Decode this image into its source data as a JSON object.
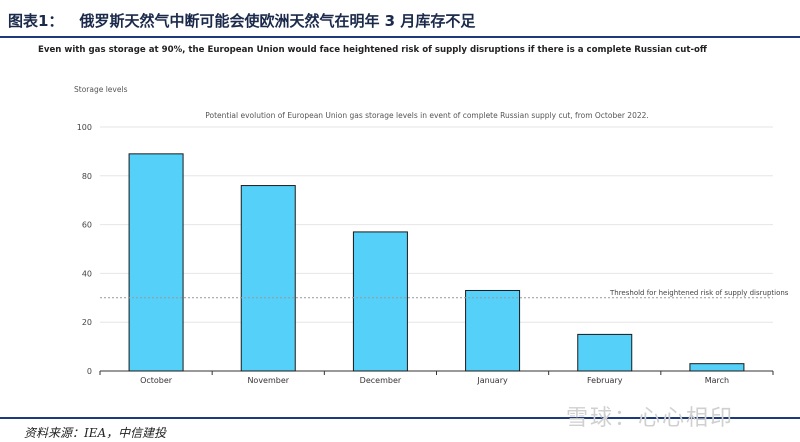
{
  "figure": {
    "label": "图表1：",
    "title": "俄罗斯天然气中断可能会使欧洲天然气在明年 3 月库存不足"
  },
  "subtitle": "Even with gas storage at 90%, the European Union would face heightened risk of supply disruptions if there is a complete Russian cut-off",
  "source": "资料来源：IEA，中信建投",
  "watermark": "雪球：心心相印",
  "colors": {
    "bar": "#55d0f8",
    "bar_stroke": "#1a1a1a",
    "threshold": "#999999",
    "title_rule": "#1f3a7a"
  },
  "chart_data": {
    "type": "bar",
    "title": "Potential evolution of European Union gas storage levels in event of complete Russian supply cut, from October 2022.",
    "ylabel": "Storage levels",
    "xlabel": "",
    "categories": [
      "October",
      "November",
      "December",
      "January",
      "February",
      "March"
    ],
    "values": [
      89,
      76,
      57,
      33,
      15,
      3
    ],
    "ylim": [
      0,
      100
    ],
    "yticks": [
      0,
      20,
      40,
      60,
      80,
      100
    ],
    "threshold": {
      "value": 30,
      "label": "Threshold for heightened risk of supply disruptions"
    },
    "grid": true,
    "legend": "none"
  }
}
